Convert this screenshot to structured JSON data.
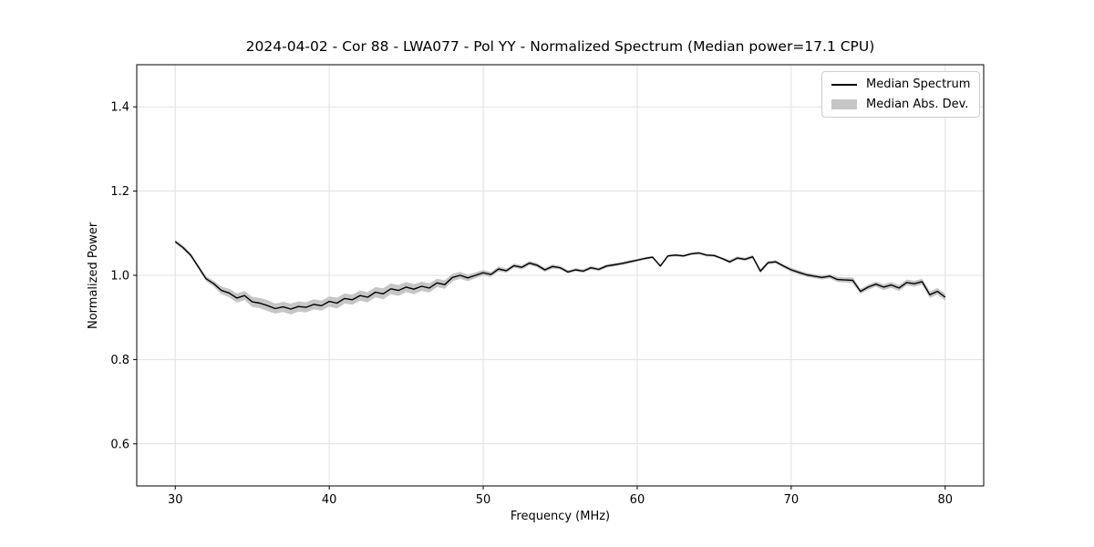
{
  "chart_data": {
    "type": "line",
    "title": "2024-04-02 - Cor 88 - LWA077 - Pol YY - Normalized Spectrum (Median power=17.1 CPU)",
    "xlabel": "Frequency (MHz)",
    "ylabel": "Normalized Power",
    "xlim": [
      27.5,
      82.5
    ],
    "ylim": [
      0.5,
      1.5
    ],
    "xticks": [
      30,
      40,
      50,
      60,
      70,
      80
    ],
    "xticklabels": [
      "30",
      "40",
      "50",
      "60",
      "70",
      "80"
    ],
    "yticks": [
      0.6,
      0.8,
      1.0,
      1.2,
      1.4
    ],
    "yticklabels": [
      "0.6",
      "0.8",
      "1.0",
      "1.2",
      "1.4"
    ],
    "grid": true,
    "legend": {
      "position": "upper right",
      "entries": [
        {
          "label": "Median Spectrum",
          "type": "line",
          "color": "#000000"
        },
        {
          "label": "Median Abs. Dev.",
          "type": "patch",
          "color": "#c6c6c6"
        }
      ]
    },
    "colors": {
      "line": "#000000",
      "band": "#c6c6c6",
      "grid": "#e0e0e0",
      "spine": "#000000",
      "background": "#ffffff"
    },
    "series": [
      {
        "name": "Median Spectrum",
        "type": "line",
        "x": [
          30,
          30.5,
          31,
          31.5,
          32,
          32.5,
          33,
          33.5,
          34,
          34.5,
          35,
          35.5,
          36,
          36.5,
          37,
          37.5,
          38,
          38.5,
          39,
          39.5,
          40,
          40.5,
          41,
          41.5,
          42,
          42.5,
          43,
          43.5,
          44,
          44.5,
          45,
          45.5,
          46,
          46.5,
          47,
          47.5,
          48,
          48.5,
          49,
          49.5,
          50,
          50.5,
          51,
          51.5,
          52,
          52.5,
          53,
          53.5,
          54,
          54.5,
          55,
          55.5,
          56,
          56.5,
          57,
          57.5,
          58,
          58.5,
          59,
          59.5,
          60,
          60.5,
          61,
          61.5,
          62,
          62.5,
          63,
          63.5,
          64,
          64.5,
          65,
          65.5,
          66,
          66.5,
          67,
          67.5,
          68,
          68.5,
          69,
          69.5,
          70,
          70.5,
          71,
          71.5,
          72,
          72.5,
          73,
          73.5,
          74,
          74.5,
          75,
          75.5,
          76,
          76.5,
          77,
          77.5,
          78,
          78.5,
          79,
          79.5,
          80
        ],
        "y": [
          1.08,
          1.066,
          1.048,
          1.02,
          0.992,
          0.98,
          0.964,
          0.958,
          0.946,
          0.952,
          0.937,
          0.934,
          0.928,
          0.921,
          0.925,
          0.92,
          0.926,
          0.924,
          0.931,
          0.928,
          0.938,
          0.934,
          0.945,
          0.942,
          0.952,
          0.948,
          0.96,
          0.956,
          0.968,
          0.964,
          0.972,
          0.967,
          0.974,
          0.97,
          0.982,
          0.978,
          0.995,
          1.0,
          0.994,
          1.0,
          1.006,
          1.002,
          1.015,
          1.011,
          1.023,
          1.019,
          1.029,
          1.024,
          1.013,
          1.021,
          1.018,
          1.008,
          1.013,
          1.01,
          1.018,
          1.014,
          1.022,
          1.025,
          1.028,
          1.032,
          1.036,
          1.04,
          1.043,
          1.022,
          1.046,
          1.048,
          1.046,
          1.051,
          1.053,
          1.048,
          1.047,
          1.04,
          1.032,
          1.041,
          1.038,
          1.044,
          1.01,
          1.03,
          1.032,
          1.022,
          1.013,
          1.007,
          1.001,
          0.998,
          0.995,
          0.998,
          0.99,
          0.989,
          0.988,
          0.962,
          0.972,
          0.979,
          0.972,
          0.977,
          0.97,
          0.983,
          0.98,
          0.985,
          0.954,
          0.962,
          0.948
        ]
      },
      {
        "name": "Median Abs. Dev.",
        "type": "band",
        "halfwidth": [
          0.005,
          0.005,
          0.005,
          0.005,
          0.006,
          0.007,
          0.009,
          0.01,
          0.011,
          0.011,
          0.012,
          0.012,
          0.013,
          0.012,
          0.012,
          0.013,
          0.012,
          0.012,
          0.012,
          0.012,
          0.012,
          0.013,
          0.012,
          0.012,
          0.012,
          0.012,
          0.012,
          0.013,
          0.013,
          0.013,
          0.012,
          0.012,
          0.011,
          0.011,
          0.01,
          0.01,
          0.009,
          0.008,
          0.008,
          0.007,
          0.007,
          0.006,
          0.006,
          0.005,
          0.005,
          0.005,
          0.005,
          0.005,
          0.005,
          0.005,
          0.004,
          0.004,
          0.004,
          0.004,
          0.004,
          0.004,
          0.004,
          0.004,
          0.004,
          0.004,
          0.003,
          0.003,
          0.003,
          0.003,
          0.003,
          0.003,
          0.003,
          0.003,
          0.003,
          0.003,
          0.003,
          0.003,
          0.004,
          0.004,
          0.004,
          0.004,
          0.005,
          0.004,
          0.004,
          0.004,
          0.005,
          0.005,
          0.005,
          0.005,
          0.005,
          0.005,
          0.006,
          0.006,
          0.007,
          0.006,
          0.006,
          0.006,
          0.007,
          0.007,
          0.007,
          0.007,
          0.007,
          0.007,
          0.008,
          0.008,
          0.008
        ]
      }
    ]
  }
}
